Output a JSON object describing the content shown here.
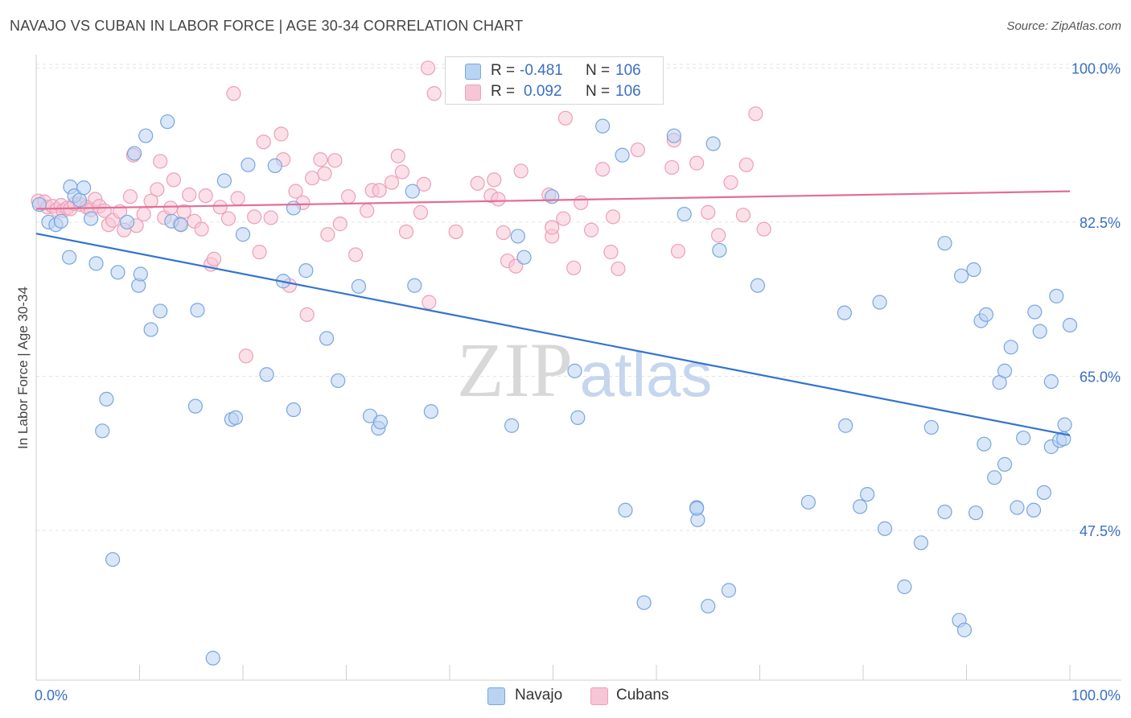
{
  "title": "NAVAJO VS CUBAN IN LABOR FORCE | AGE 30-34 CORRELATION CHART",
  "source": "Source: ZipAtlas.com",
  "watermark": {
    "zip": "ZIP",
    "atlas": "atlas"
  },
  "legend": {
    "navajo": {
      "r_label": "R =",
      "r_value": "-0.481",
      "n_label": "N =",
      "n_value": "106"
    },
    "cubans": {
      "r_label": "R =",
      "r_value": "0.092",
      "n_label": "N =",
      "n_value": "106"
    }
  },
  "bottom_legend": {
    "navajo": "Navajo",
    "cubans": "Cubans"
  },
  "colors": {
    "navajo_fill": "#b9d3f2",
    "navajo_stroke": "#7aa6de",
    "navajo_line": "#3473d0",
    "cubans_fill": "#f7c6d6",
    "cubans_stroke": "#ec9fb9",
    "cubans_line": "#e36d96",
    "tick_label": "#3a6fc4",
    "grid": "#e3e3e3"
  },
  "chart_data": {
    "type": "scatter",
    "title": "NAVAJO VS CUBAN IN LABOR FORCE | AGE 30-34 CORRELATION CHART",
    "xlabel": "",
    "ylabel": "In Labor Force | Age 30-34",
    "xlim": [
      0,
      100
    ],
    "ylim": [
      30.5,
      101.5
    ],
    "x_tick_labels": [
      "0.0%",
      "100.0%"
    ],
    "y_ticks": [
      47.5,
      65.0,
      82.5,
      100.0
    ],
    "y_tick_labels": [
      "47.5%",
      "65.0%",
      "82.5%",
      "100.0%"
    ],
    "grid": true,
    "legend_position": "top-center",
    "series": [
      {
        "name": "Navajo",
        "r": -0.481,
        "n": 106,
        "trend": {
          "x": [
            0,
            100
          ],
          "y": [
            81.2,
            58.3
          ]
        },
        "points": [
          [
            0.3,
            84.5
          ],
          [
            1.2,
            82.5
          ],
          [
            1.9,
            82.2
          ],
          [
            2.4,
            82.6
          ],
          [
            3.2,
            78.5
          ],
          [
            3.3,
            86.5
          ],
          [
            3.7,
            85.5
          ],
          [
            4.2,
            85.0
          ],
          [
            4.6,
            86.4
          ],
          [
            5.3,
            82.9
          ],
          [
            5.8,
            77.8
          ],
          [
            6.4,
            58.8
          ],
          [
            6.8,
            62.4
          ],
          [
            7.4,
            44.2
          ],
          [
            7.9,
            76.8
          ],
          [
            8.8,
            82.5
          ],
          [
            9.5,
            90.3
          ],
          [
            9.9,
            75.3
          ],
          [
            10.1,
            76.6
          ],
          [
            10.6,
            92.3
          ],
          [
            11.1,
            70.3
          ],
          [
            12.0,
            72.4
          ],
          [
            12.7,
            93.9
          ],
          [
            13.1,
            82.6
          ],
          [
            14.0,
            82.2
          ],
          [
            15.6,
            72.5
          ],
          [
            17.1,
            33.0
          ],
          [
            18.2,
            87.2
          ],
          [
            18.9,
            60.1
          ],
          [
            19.3,
            60.3
          ],
          [
            20.0,
            81.1
          ],
          [
            20.5,
            89.0
          ],
          [
            22.3,
            65.2
          ],
          [
            23.1,
            88.9
          ],
          [
            23.9,
            75.8
          ],
          [
            24.9,
            61.2
          ],
          [
            24.9,
            84.1
          ],
          [
            26.1,
            77.0
          ],
          [
            28.1,
            69.3
          ],
          [
            29.2,
            64.5
          ],
          [
            31.2,
            75.2
          ],
          [
            32.3,
            60.5
          ],
          [
            33.1,
            59.1
          ],
          [
            33.3,
            59.8
          ],
          [
            36.4,
            86.0
          ],
          [
            36.6,
            75.3
          ],
          [
            38.2,
            61.0
          ],
          [
            46.0,
            59.4
          ],
          [
            46.6,
            80.9
          ],
          [
            47.2,
            78.5
          ],
          [
            52.1,
            65.6
          ],
          [
            52.4,
            60.3
          ],
          [
            56.7,
            90.1
          ],
          [
            57.0,
            49.8
          ],
          [
            58.8,
            39.3
          ],
          [
            61.7,
            92.3
          ],
          [
            62.7,
            83.4
          ],
          [
            63.9,
            50.1
          ],
          [
            64.0,
            48.7
          ],
          [
            65.0,
            38.9
          ],
          [
            65.5,
            91.4
          ],
          [
            66.1,
            79.3
          ],
          [
            67.0,
            40.7
          ],
          [
            69.8,
            75.3
          ],
          [
            74.7,
            50.7
          ],
          [
            78.2,
            72.2
          ],
          [
            78.3,
            59.4
          ],
          [
            79.7,
            50.2
          ],
          [
            80.4,
            51.6
          ],
          [
            81.6,
            73.4
          ],
          [
            82.1,
            47.7
          ],
          [
            84.0,
            41.1
          ],
          [
            85.6,
            46.1
          ],
          [
            86.6,
            59.2
          ],
          [
            87.9,
            80.1
          ],
          [
            87.9,
            49.6
          ],
          [
            89.3,
            37.3
          ],
          [
            89.5,
            76.4
          ],
          [
            89.8,
            36.2
          ],
          [
            90.7,
            77.1
          ],
          [
            90.9,
            49.5
          ],
          [
            91.4,
            71.3
          ],
          [
            91.7,
            57.3
          ],
          [
            91.9,
            72.0
          ],
          [
            92.7,
            53.5
          ],
          [
            93.2,
            64.3
          ],
          [
            93.7,
            65.6
          ],
          [
            93.7,
            55.0
          ],
          [
            94.3,
            68.3
          ],
          [
            94.9,
            50.1
          ],
          [
            95.5,
            58.0
          ],
          [
            96.5,
            49.8
          ],
          [
            96.6,
            72.3
          ],
          [
            97.1,
            70.1
          ],
          [
            97.5,
            51.8
          ],
          [
            98.2,
            57.0
          ],
          [
            98.2,
            64.4
          ],
          [
            98.7,
            74.1
          ],
          [
            99.0,
            57.7
          ],
          [
            99.5,
            59.5
          ],
          [
            100.0,
            70.8
          ],
          [
            99.4,
            57.9
          ],
          [
            63.9,
            50.0
          ],
          [
            54.8,
            93.4
          ],
          [
            15.4,
            61.6
          ],
          [
            49.9,
            85.4
          ]
        ]
      },
      {
        "name": "Cubans",
        "r": 0.092,
        "n": 106,
        "trend": {
          "x": [
            0,
            100
          ],
          "y": [
            84.0,
            86.0
          ]
        },
        "points": [
          [
            0.2,
            84.9
          ],
          [
            0.8,
            84.8
          ],
          [
            1.1,
            84.2
          ],
          [
            1.6,
            84.3
          ],
          [
            2.0,
            83.9
          ],
          [
            2.4,
            84.4
          ],
          [
            2.6,
            83.8
          ],
          [
            3.0,
            84.1
          ],
          [
            3.3,
            84.0
          ],
          [
            3.7,
            84.6
          ],
          [
            4.3,
            84.5
          ],
          [
            4.9,
            84.2
          ],
          [
            5.3,
            83.9
          ],
          [
            5.7,
            85.1
          ],
          [
            6.1,
            84.3
          ],
          [
            6.6,
            83.8
          ],
          [
            7.0,
            82.2
          ],
          [
            7.4,
            82.7
          ],
          [
            8.1,
            83.7
          ],
          [
            8.5,
            81.6
          ],
          [
            9.1,
            85.4
          ],
          [
            9.4,
            90.1
          ],
          [
            9.7,
            82.1
          ],
          [
            10.4,
            83.4
          ],
          [
            11.1,
            84.9
          ],
          [
            11.7,
            86.2
          ],
          [
            12.0,
            89.4
          ],
          [
            12.4,
            83.0
          ],
          [
            13.0,
            84.1
          ],
          [
            13.3,
            87.3
          ],
          [
            13.9,
            82.3
          ],
          [
            14.3,
            83.7
          ],
          [
            14.8,
            85.6
          ],
          [
            15.3,
            82.6
          ],
          [
            16.0,
            81.7
          ],
          [
            16.4,
            85.5
          ],
          [
            16.9,
            77.7
          ],
          [
            17.2,
            78.3
          ],
          [
            17.8,
            84.2
          ],
          [
            18.6,
            82.9
          ],
          [
            19.1,
            97.1
          ],
          [
            19.5,
            85.2
          ],
          [
            20.3,
            67.3
          ],
          [
            21.1,
            83.1
          ],
          [
            21.6,
            79.1
          ],
          [
            22.0,
            91.6
          ],
          [
            22.7,
            83.0
          ],
          [
            23.7,
            92.5
          ],
          [
            23.9,
            89.6
          ],
          [
            24.5,
            75.3
          ],
          [
            25.1,
            86.0
          ],
          [
            25.8,
            84.7
          ],
          [
            26.2,
            72.0
          ],
          [
            26.7,
            87.5
          ],
          [
            27.5,
            89.6
          ],
          [
            27.9,
            88.0
          ],
          [
            28.2,
            81.1
          ],
          [
            28.9,
            89.5
          ],
          [
            29.4,
            82.3
          ],
          [
            30.2,
            85.4
          ],
          [
            30.9,
            78.8
          ],
          [
            32.0,
            83.8
          ],
          [
            32.5,
            86.1
          ],
          [
            33.2,
            86.1
          ],
          [
            34.4,
            87.0
          ],
          [
            35.0,
            90.0
          ],
          [
            35.4,
            88.2
          ],
          [
            35.8,
            81.4
          ],
          [
            37.2,
            83.6
          ],
          [
            37.5,
            86.8
          ],
          [
            38.0,
            73.4
          ],
          [
            37.9,
            100.0
          ],
          [
            38.5,
            97.1
          ],
          [
            40.6,
            81.4
          ],
          [
            42.7,
            86.9
          ],
          [
            44.0,
            85.5
          ],
          [
            44.3,
            87.3
          ],
          [
            44.7,
            85.1
          ],
          [
            45.2,
            81.3
          ],
          [
            45.6,
            78.1
          ],
          [
            46.4,
            77.5
          ],
          [
            46.9,
            88.3
          ],
          [
            49.6,
            85.6
          ],
          [
            49.9,
            80.9
          ],
          [
            49.9,
            81.9
          ],
          [
            51.0,
            82.9
          ],
          [
            51.2,
            94.3
          ],
          [
            52.0,
            77.3
          ],
          [
            52.7,
            84.7
          ],
          [
            53.7,
            81.6
          ],
          [
            54.8,
            88.5
          ],
          [
            55.6,
            79.1
          ],
          [
            55.8,
            83.1
          ],
          [
            56.3,
            77.2
          ],
          [
            58.2,
            90.7
          ],
          [
            61.5,
            88.7
          ],
          [
            61.7,
            91.8
          ],
          [
            62.1,
            79.2
          ],
          [
            63.9,
            89.2
          ],
          [
            65.0,
            83.6
          ],
          [
            66.0,
            81.0
          ],
          [
            67.2,
            87.0
          ],
          [
            68.4,
            83.3
          ],
          [
            68.7,
            89.0
          ],
          [
            69.6,
            94.8
          ],
          [
            70.4,
            81.7
          ]
        ]
      }
    ]
  }
}
